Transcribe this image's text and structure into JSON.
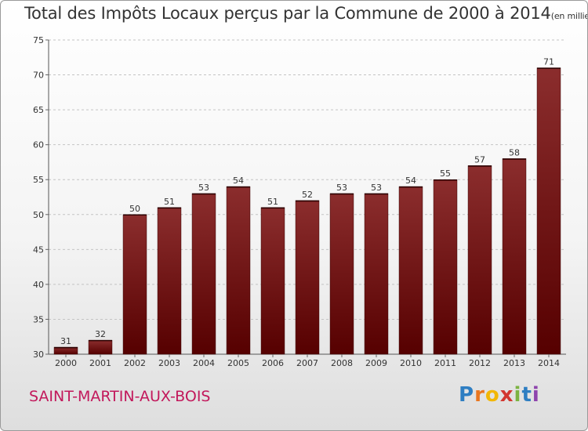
{
  "title": "Total des Impôts Locaux perçus par la Commune de 2000 à 2014",
  "title_unit": "(en milliers d'€)",
  "commune": "SAINT-MARTIN-AUX-BOIS",
  "logo": {
    "text": "Proxiti",
    "letters": [
      "P",
      "r",
      "o",
      "x",
      "i",
      "t",
      "i"
    ],
    "colors": [
      "#2e7ec2",
      "#e9761f",
      "#f2b705",
      "#d2362f",
      "#7cb342",
      "#2e7ec2",
      "#8e44ad"
    ]
  },
  "colors": {
    "bar_light": "#8b2d2d",
    "bar_dark": "#560000",
    "commune": "#c2185b"
  },
  "chart_data": {
    "type": "bar",
    "categories": [
      "2000",
      "2001",
      "2002",
      "2003",
      "2004",
      "2005",
      "2006",
      "2007",
      "2008",
      "2009",
      "2010",
      "2011",
      "2012",
      "2013",
      "2014"
    ],
    "values": [
      31,
      32,
      50,
      51,
      53,
      54,
      51,
      52,
      53,
      53,
      54,
      55,
      57,
      58,
      71
    ],
    "ylim": [
      30,
      75
    ],
    "yticks": [
      30,
      35,
      40,
      45,
      50,
      55,
      60,
      65,
      70,
      75
    ],
    "grid": true
  }
}
